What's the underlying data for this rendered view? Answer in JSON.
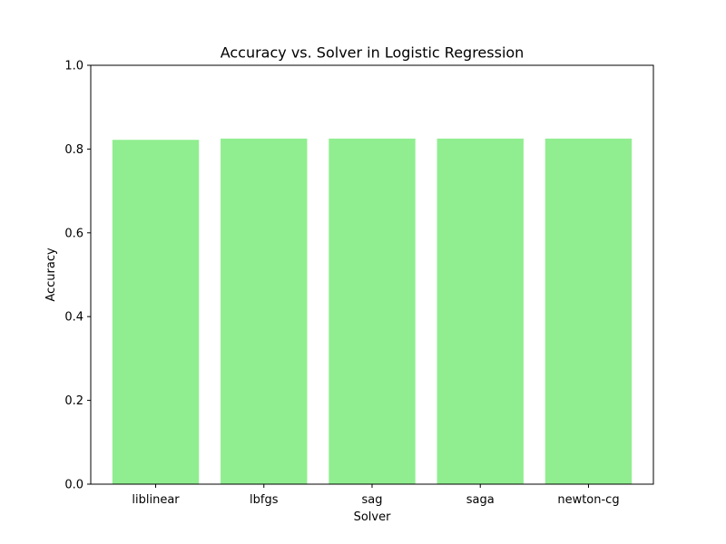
{
  "chart_data": {
    "type": "bar",
    "title": "Accuracy vs. Solver in Logistic Regression",
    "xlabel": "Solver",
    "ylabel": "Accuracy",
    "categories": [
      "liblinear",
      "lbfgs",
      "sag",
      "saga",
      "newton-cg"
    ],
    "values": [
      0.822,
      0.825,
      0.825,
      0.825,
      0.825
    ],
    "ylim": [
      0,
      1.0
    ],
    "yticks": [
      "0.0",
      "0.2",
      "0.4",
      "0.6",
      "0.8",
      "1.0"
    ],
    "bar_color": "#90ee90",
    "grid": false,
    "legend": "none"
  }
}
